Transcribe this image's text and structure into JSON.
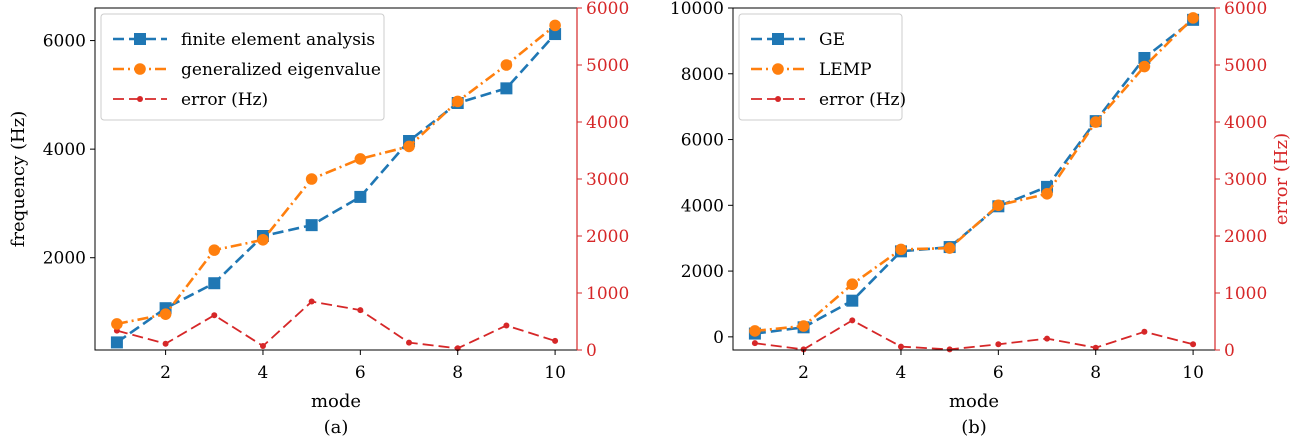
{
  "colors": {
    "blue": "#1f77b4",
    "orange": "#ff7f0e",
    "red": "#d62728",
    "axis": "#000000",
    "error_axis": "#d62728"
  },
  "chart_data": [
    {
      "type": "line",
      "caption": "(a)",
      "xlabel": "mode",
      "ylabel": "frequency (Hz)",
      "y2label": "",
      "x": [
        1,
        2,
        3,
        4,
        5,
        6,
        7,
        8,
        9,
        10
      ],
      "xlim": [
        0.55,
        10.45
      ],
      "xticks": [
        2,
        4,
        6,
        8,
        10
      ],
      "ylim": [
        300,
        6600
      ],
      "yticks": [
        2000,
        4000,
        6000
      ],
      "y2lim": [
        0,
        6000
      ],
      "y2ticks": [
        0,
        1000,
        2000,
        3000,
        4000,
        5000,
        6000
      ],
      "legend_position": "top-left",
      "series": [
        {
          "name": "finite element analysis",
          "axis": "left",
          "style": "dashed",
          "marker": "square",
          "color": "#1f77b4",
          "values": [
            440,
            1070,
            1530,
            2400,
            2600,
            3120,
            4150,
            4850,
            5120,
            6120
          ]
        },
        {
          "name": "generalized eigenvalue",
          "axis": "left",
          "style": "dashdot",
          "marker": "circle",
          "color": "#ff7f0e",
          "values": [
            780,
            960,
            2140,
            2330,
            3450,
            3820,
            4050,
            4880,
            5550,
            6280
          ]
        },
        {
          "name": "error (Hz)",
          "axis": "right",
          "style": "dashed",
          "marker": "dot",
          "color": "#d62728",
          "values": [
            340,
            110,
            610,
            70,
            850,
            700,
            130,
            30,
            430,
            160
          ]
        }
      ]
    },
    {
      "type": "line",
      "caption": "(b)",
      "xlabel": "mode",
      "ylabel": "",
      "y2label": "error (Hz)",
      "x": [
        1,
        2,
        3,
        4,
        5,
        6,
        7,
        8,
        9,
        10
      ],
      "xlim": [
        0.55,
        10.45
      ],
      "xticks": [
        2,
        4,
        6,
        8,
        10
      ],
      "ylim": [
        -400,
        10000
      ],
      "yticks": [
        0,
        2000,
        4000,
        6000,
        8000,
        10000
      ],
      "y2lim": [
        0,
        6000
      ],
      "y2ticks": [
        0,
        1000,
        2000,
        3000,
        4000,
        5000,
        6000
      ],
      "legend_position": "top-left",
      "series": [
        {
          "name": "GE",
          "axis": "left",
          "style": "dashed",
          "marker": "square",
          "color": "#1f77b4",
          "values": [
            100,
            290,
            1100,
            2600,
            2730,
            3970,
            4560,
            6560,
            8480,
            9640
          ]
        },
        {
          "name": "LEMP",
          "axis": "left",
          "style": "dashdot",
          "marker": "circle",
          "color": "#ff7f0e",
          "values": [
            180,
            330,
            1600,
            2660,
            2700,
            4000,
            4350,
            6530,
            8220,
            9700
          ]
        },
        {
          "name": "error (Hz)",
          "axis": "right",
          "style": "dashed",
          "marker": "dot",
          "color": "#d62728",
          "values": [
            120,
            10,
            520,
            60,
            10,
            100,
            200,
            40,
            320,
            100
          ]
        }
      ]
    }
  ]
}
